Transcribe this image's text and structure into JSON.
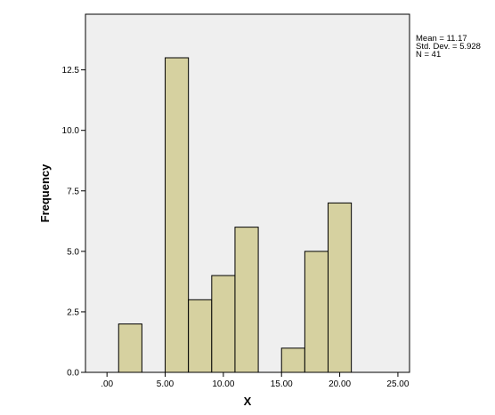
{
  "chart_data": {
    "type": "bar",
    "subtype": "histogram",
    "xlabel": "X",
    "ylabel": "Frequency",
    "xlim": [
      -1.85,
      26.0
    ],
    "ylim": [
      0,
      14.8
    ],
    "xticks": [
      ".00",
      "5.00",
      "10.00",
      "15.00",
      "20.00",
      "25.00"
    ],
    "xtick_values": [
      0,
      5,
      10,
      15,
      20,
      25
    ],
    "yticks": [
      "0.0",
      "2.5",
      "5.0",
      "7.5",
      "10.0",
      "12.5"
    ],
    "ytick_values": [
      0,
      2.5,
      5,
      7.5,
      10,
      12.5
    ],
    "bin_width": 2,
    "bins": [
      {
        "start": 1,
        "end": 3,
        "count": 2
      },
      {
        "start": 3,
        "end": 5,
        "count": 0
      },
      {
        "start": 5,
        "end": 7,
        "count": 13
      },
      {
        "start": 7,
        "end": 9,
        "count": 3
      },
      {
        "start": 9,
        "end": 11,
        "count": 4
      },
      {
        "start": 11,
        "end": 13,
        "count": 6
      },
      {
        "start": 13,
        "end": 15,
        "count": 0
      },
      {
        "start": 15,
        "end": 17,
        "count": 1
      },
      {
        "start": 17,
        "end": 19,
        "count": 5
      },
      {
        "start": 19,
        "end": 21,
        "count": 7
      }
    ],
    "grid": false,
    "colors": {
      "plot_background": "#efefef",
      "bar_fill": "#d6d1a0",
      "bar_stroke": "#000000"
    }
  },
  "stats": {
    "mean": "Mean = 11.17",
    "std_dev": "Std. Dev. = 5.928",
    "n": "N = 41"
  }
}
